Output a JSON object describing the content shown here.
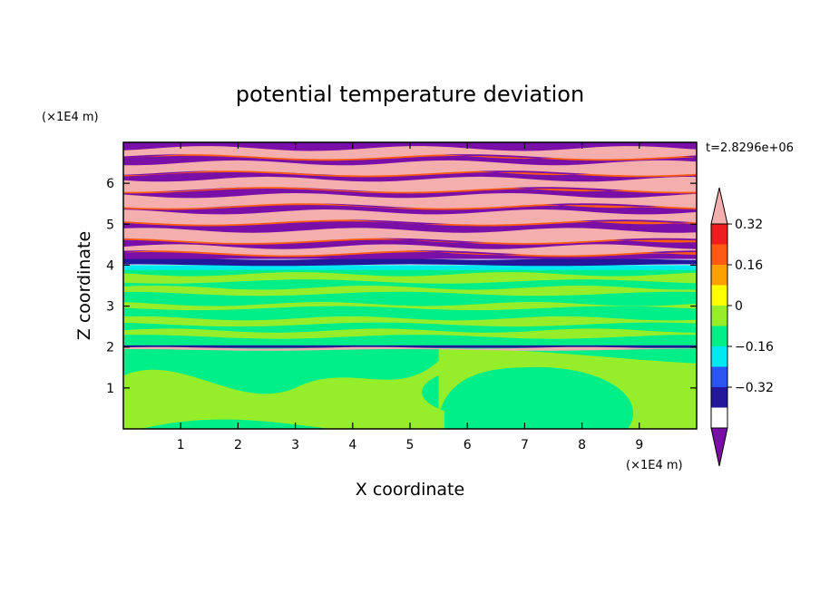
{
  "chart_data": {
    "type": "heatmap",
    "title": "potential temperature deviation",
    "xlabel": "X coordinate",
    "ylabel": "Z coordinate",
    "x_unit": "(×1E4 m)",
    "y_unit": "(×1E4 m)",
    "time_label": "t=2.8296e+06",
    "xlim": [
      0,
      10
    ],
    "ylim": [
      0,
      7
    ],
    "x_ticks": [
      "1",
      "2",
      "3",
      "4",
      "5",
      "6",
      "7",
      "8",
      "9"
    ],
    "y_ticks": [
      "1",
      "2",
      "3",
      "4",
      "5",
      "6"
    ],
    "colorbar": {
      "levels": [
        -0.4,
        -0.32,
        -0.24,
        -0.16,
        -0.08,
        0,
        0.08,
        0.16,
        0.24,
        0.32,
        0.4
      ],
      "tick_labels": [
        "0.32",
        "0.16",
        "0",
        "−0.16",
        "−0.32"
      ],
      "tick_values": [
        0.32,
        0.16,
        0,
        -0.16,
        -0.32
      ],
      "colors": [
        "#7a0fa8",
        "#23179c",
        "#2a55f0",
        "#00e8f0",
        "#00ee88",
        "#96ee2a",
        "#ffff00",
        "#ffa000",
        "#ff5a14",
        "#ee1e1e",
        "#f4aeae"
      ],
      "extend": "both"
    },
    "layers": [
      {
        "z_range": [
          0,
          2.0
        ],
        "description_colors": [
          "#00ee88",
          "#96ee2a"
        ]
      },
      {
        "z_range": [
          2.0,
          3.9
        ],
        "description_colors": [
          "#00ee88",
          "#96ee2a"
        ]
      },
      {
        "z_range": [
          3.9,
          4.15
        ],
        "description_colors": [
          "#00e8f0",
          "#23179c"
        ]
      },
      {
        "z_range": [
          4.15,
          7.0
        ],
        "description_colors": [
          "#7a0fa8",
          "#f4aeae"
        ]
      }
    ]
  }
}
